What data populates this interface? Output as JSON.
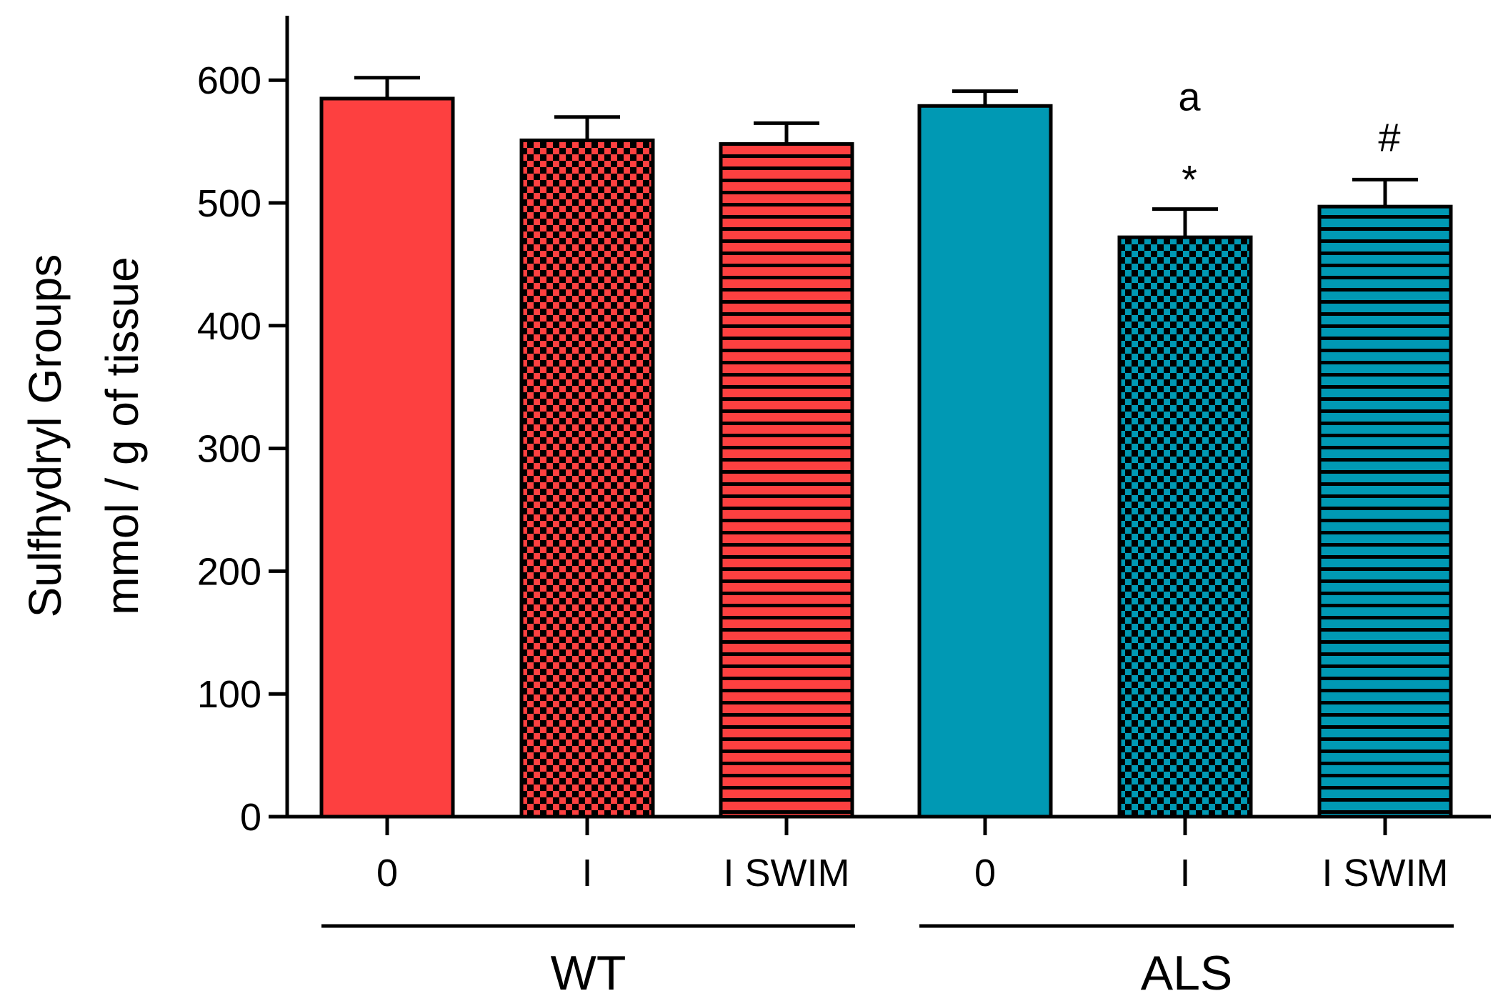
{
  "chart_data": {
    "type": "bar",
    "ylabel_lines": [
      "Sulfhydryl Groups",
      "mmol / g of tissue"
    ],
    "ylim": [
      0,
      650
    ],
    "yticks": [
      0,
      100,
      200,
      300,
      400,
      500,
      600
    ],
    "ytick_labels": [
      "0",
      "100",
      "200",
      "300",
      "400",
      "500",
      "600"
    ],
    "bars": [
      {
        "label": "0",
        "group": "WT",
        "value": 585,
        "error": 17,
        "color": "#fd4040",
        "pattern": "solid",
        "annotations": []
      },
      {
        "label": "I",
        "group": "WT",
        "value": 551,
        "error": 19,
        "color": "#fd4040",
        "pattern": "checker",
        "annotations": []
      },
      {
        "label": "I SWIM",
        "group": "WT",
        "value": 548,
        "error": 17,
        "color": "#fd4040",
        "pattern": "hstripe",
        "annotations": []
      },
      {
        "label": "0",
        "group": "ALS",
        "value": 579,
        "error": 12,
        "color": "#0099b4",
        "pattern": "solid",
        "annotations": []
      },
      {
        "label": "I",
        "group": "ALS",
        "value": 472,
        "error": 23,
        "color": "#0099b4",
        "pattern": "checker",
        "annotations": [
          "*",
          "a"
        ]
      },
      {
        "label": "I SWIM",
        "group": "ALS",
        "value": 497,
        "error": 22,
        "color": "#0099b4",
        "pattern": "hstripe",
        "annotations": [
          "#"
        ]
      }
    ],
    "groups": [
      {
        "name": "WT",
        "first_bar": 0,
        "last_bar": 2
      },
      {
        "name": "ALS",
        "first_bar": 3,
        "last_bar": 5
      }
    ]
  }
}
